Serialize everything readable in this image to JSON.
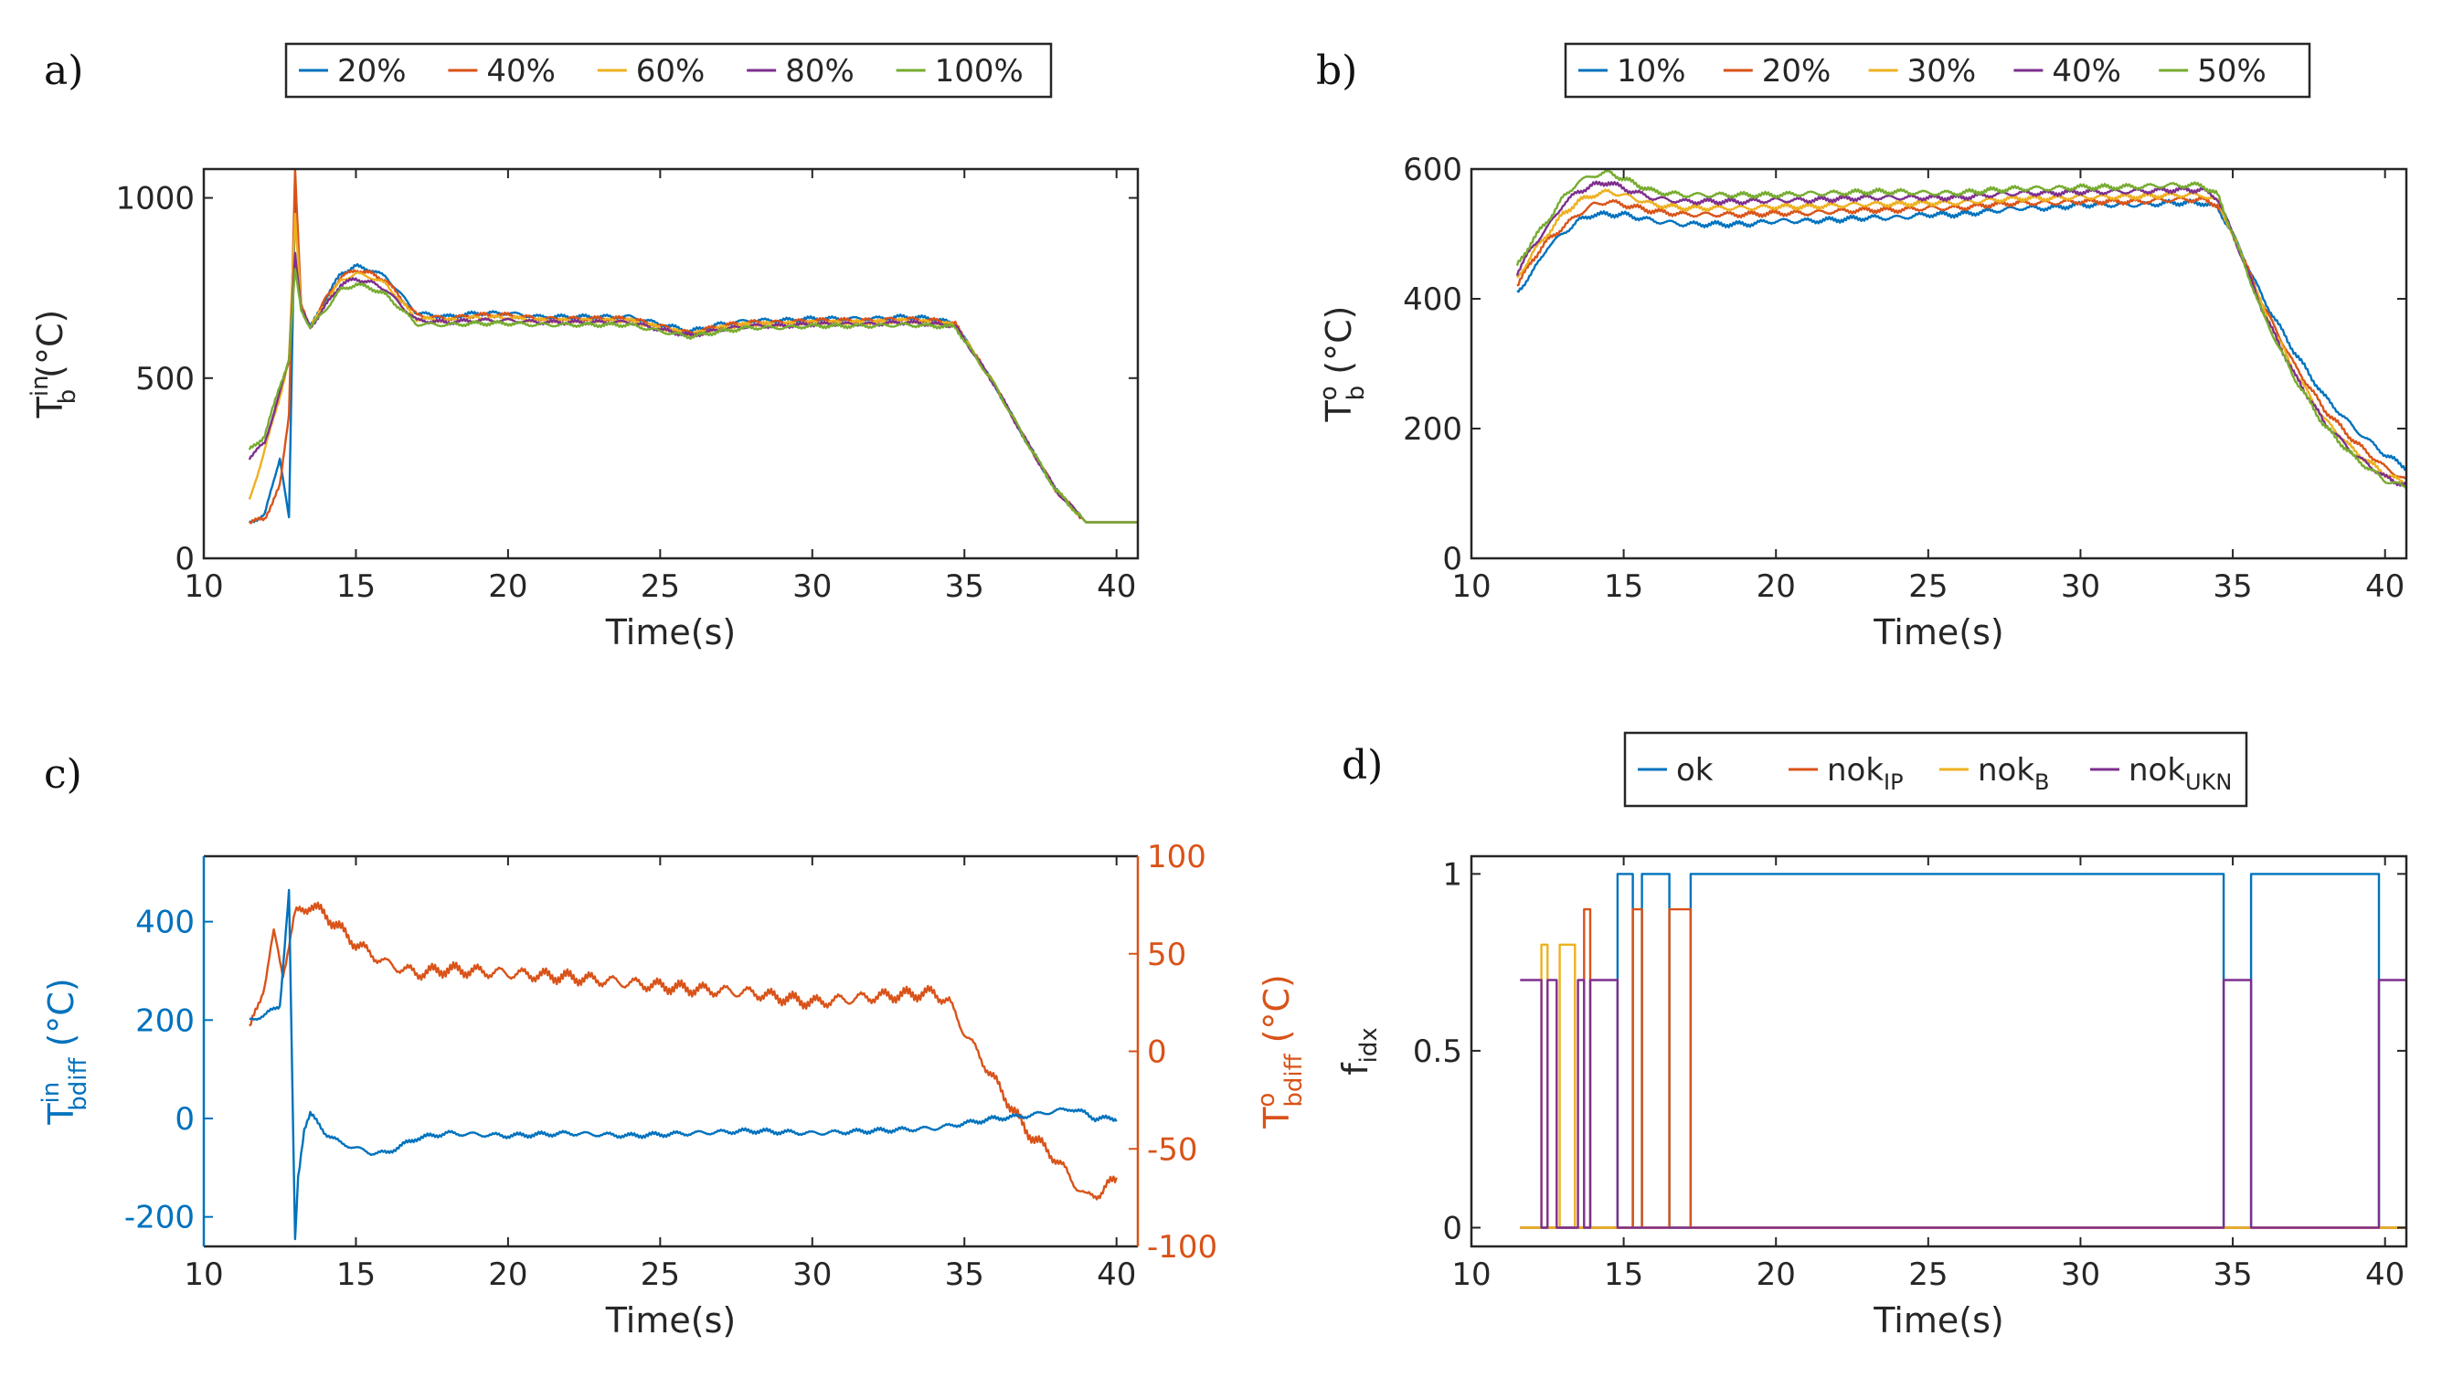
{
  "colors": {
    "blue": "#0072BD",
    "orange": "#D95319",
    "yellow": "#EDB120",
    "purple": "#7E2F8E",
    "green": "#77AC30",
    "axis": "#262626"
  },
  "chart_data": [
    {
      "id": "a",
      "panel_label": "a)",
      "type": "line",
      "xlabel": "Time(s)",
      "xlim": [
        10,
        40.7
      ],
      "ylim": [
        0,
        1080
      ],
      "xticks": [
        "10",
        "15",
        "20",
        "25",
        "30",
        "35",
        "40"
      ],
      "yticks": [
        "0",
        "500",
        "1000"
      ],
      "ylabel": {
        "base": "T",
        "sup": "in",
        "sub": "b",
        "unit": " (°C)"
      },
      "legend": [
        {
          "label": "20%"
        },
        {
          "label": "40%"
        },
        {
          "label": "60%"
        },
        {
          "label": "80%"
        },
        {
          "label": "100%"
        }
      ],
      "x": [
        11.5,
        12,
        12.5,
        12.8,
        13,
        13.2,
        13.5,
        14,
        14.5,
        15,
        15.5,
        16,
        16.5,
        17,
        18,
        19,
        20,
        21,
        22,
        23,
        24,
        25,
        26,
        27,
        28,
        29,
        30,
        31,
        32,
        33,
        34,
        34.7,
        36,
        37,
        38,
        39,
        40,
        40.7
      ],
      "series": [
        {
          "name": "20%",
          "color": "#0072BD",
          "values": [
            100,
            120,
            280,
            110,
            1000,
            700,
            640,
            720,
            790,
            810,
            800,
            780,
            730,
            680,
            670,
            680,
            680,
            670,
            670,
            670,
            670,
            650,
            630,
            650,
            660,
            660,
            665,
            665,
            665,
            670,
            665,
            650,
            480,
            330,
            190,
            100,
            100,
            100
          ]
        },
        {
          "name": "40%",
          "color": "#D95319",
          "values": [
            100,
            110,
            200,
            400,
            1080,
            700,
            640,
            720,
            780,
            800,
            790,
            770,
            720,
            675,
            665,
            675,
            675,
            665,
            665,
            665,
            665,
            645,
            625,
            645,
            655,
            655,
            660,
            660,
            660,
            665,
            660,
            650,
            480,
            330,
            190,
            100,
            100,
            100
          ]
        },
        {
          "name": "60%",
          "color": "#EDB120",
          "values": [
            160,
            300,
            450,
            550,
            950,
            700,
            640,
            710,
            770,
            790,
            780,
            760,
            710,
            665,
            660,
            668,
            668,
            660,
            660,
            660,
            660,
            640,
            622,
            640,
            650,
            650,
            655,
            655,
            655,
            660,
            655,
            648,
            480,
            330,
            190,
            100,
            100,
            100
          ]
        },
        {
          "name": "80%",
          "color": "#7E2F8E",
          "values": [
            280,
            320,
            460,
            550,
            850,
            690,
            640,
            700,
            760,
            775,
            765,
            745,
            700,
            660,
            655,
            660,
            660,
            655,
            655,
            655,
            655,
            635,
            618,
            635,
            645,
            645,
            650,
            650,
            650,
            655,
            650,
            645,
            480,
            330,
            190,
            100,
            100,
            100
          ]
        },
        {
          "name": "100%",
          "color": "#77AC30",
          "values": [
            300,
            340,
            480,
            550,
            800,
            690,
            640,
            690,
            745,
            760,
            750,
            730,
            690,
            650,
            648,
            652,
            652,
            648,
            648,
            648,
            648,
            630,
            615,
            630,
            640,
            640,
            645,
            645,
            645,
            648,
            645,
            642,
            480,
            330,
            190,
            100,
            100,
            100
          ]
        }
      ]
    },
    {
      "id": "b",
      "panel_label": "b)",
      "type": "line",
      "xlabel": "Time(s)",
      "xlim": [
        10,
        40.7
      ],
      "ylim": [
        0,
        600
      ],
      "xticks": [
        "10",
        "15",
        "20",
        "25",
        "30",
        "35",
        "40"
      ],
      "yticks": [
        "0",
        "200",
        "400",
        "600"
      ],
      "ylabel": {
        "base": "T",
        "sup": "o",
        "sub": "b",
        "unit": " (°C)"
      },
      "legend": [
        {
          "label": "10%"
        },
        {
          "label": "20%"
        },
        {
          "label": "30%"
        },
        {
          "label": "40%"
        },
        {
          "label": "50%"
        }
      ],
      "x": [
        11.5,
        12,
        12.5,
        13,
        13.5,
        14,
        14.5,
        15,
        16,
        17,
        18,
        19,
        20,
        21,
        22,
        23,
        24,
        25,
        26,
        27,
        28,
        29,
        30,
        31,
        32,
        33,
        34,
        34.5,
        35,
        36,
        37,
        38,
        39,
        40,
        40.7
      ],
      "series": [
        {
          "name": "10%",
          "color": "#0072BD",
          "values": [
            410,
            440,
            480,
            500,
            520,
            530,
            530,
            530,
            520,
            515,
            515,
            515,
            520,
            520,
            522,
            525,
            525,
            530,
            530,
            535,
            540,
            540,
            545,
            545,
            545,
            548,
            548,
            540,
            500,
            400,
            320,
            250,
            200,
            160,
            140
          ]
        },
        {
          "name": "20%",
          "color": "#D95319",
          "values": [
            420,
            460,
            490,
            510,
            530,
            545,
            550,
            545,
            535,
            530,
            530,
            530,
            532,
            532,
            535,
            537,
            537,
            540,
            540,
            545,
            548,
            548,
            550,
            550,
            550,
            553,
            553,
            545,
            500,
            390,
            300,
            230,
            180,
            140,
            120
          ]
        },
        {
          "name": "30%",
          "color": "#EDB120",
          "values": [
            430,
            470,
            500,
            530,
            550,
            560,
            565,
            560,
            545,
            540,
            540,
            540,
            542,
            542,
            544,
            546,
            546,
            548,
            548,
            552,
            555,
            555,
            557,
            557,
            558,
            560,
            560,
            550,
            500,
            385,
            290,
            215,
            165,
            130,
            115
          ]
        },
        {
          "name": "40%",
          "color": "#7E2F8E",
          "values": [
            440,
            480,
            510,
            545,
            565,
            575,
            580,
            570,
            555,
            550,
            550,
            550,
            552,
            552,
            554,
            556,
            556,
            556,
            556,
            560,
            563,
            563,
            565,
            565,
            566,
            568,
            568,
            555,
            500,
            380,
            285,
            210,
            160,
            125,
            112
          ]
        },
        {
          "name": "50%",
          "color": "#77AC30",
          "values": [
            450,
            490,
            520,
            555,
            580,
            590,
            595,
            585,
            565,
            560,
            560,
            560,
            560,
            562,
            563,
            565,
            565,
            563,
            563,
            567,
            570,
            570,
            572,
            572,
            573,
            575,
            575,
            560,
            500,
            375,
            280,
            205,
            155,
            120,
            110
          ]
        }
      ]
    },
    {
      "id": "c",
      "panel_label": "c)",
      "type": "line",
      "xlabel": "Time(s)",
      "xlim": [
        10,
        40.7
      ],
      "xticks": [
        "10",
        "15",
        "20",
        "25",
        "30",
        "35",
        "40"
      ],
      "left": {
        "ylim": [
          -260,
          533
        ],
        "yticks": [
          "-200",
          "0",
          "200",
          "400"
        ],
        "ylabel": {
          "base": "T",
          "sup": "in",
          "sub": "bdiff",
          "unit": " (°C)"
        },
        "color": "#0072BD",
        "x": [
          11.5,
          12,
          12.5,
          12.8,
          13,
          13.1,
          13.3,
          13.5,
          14,
          14.5,
          15,
          15.5,
          16,
          17,
          18,
          20,
          22,
          24,
          26,
          28,
          30,
          32,
          34,
          35,
          36,
          37,
          38,
          38.5,
          39,
          39.3,
          40
        ],
        "values": [
          200,
          210,
          230,
          460,
          -250,
          -120,
          -20,
          10,
          -30,
          -50,
          -60,
          -70,
          -70,
          -40,
          -30,
          -35,
          -30,
          -35,
          -30,
          -25,
          -30,
          -25,
          -20,
          -10,
          0,
          5,
          15,
          20,
          10,
          0,
          0
        ]
      },
      "right": {
        "ylim": [
          -100,
          100
        ],
        "yticks": [
          "-100",
          "-50",
          "0",
          "50",
          "100"
        ],
        "ylabel": {
          "base": "T",
          "sup": "o",
          "sub": "bdiff",
          "unit": " (°C)"
        },
        "color": "#D95319",
        "x": [
          11.5,
          12,
          12.3,
          12.6,
          13,
          13.5,
          14,
          15,
          16,
          17,
          18,
          20,
          22,
          24,
          26,
          28,
          30,
          32,
          34,
          34.5,
          35,
          36,
          37,
          38,
          38.5,
          39,
          39.5,
          40
        ],
        "values": [
          10,
          35,
          60,
          40,
          70,
          75,
          70,
          55,
          45,
          40,
          42,
          40,
          38,
          35,
          32,
          30,
          25,
          28,
          30,
          25,
          10,
          -15,
          -40,
          -55,
          -65,
          -75,
          -72,
          -65
        ]
      }
    },
    {
      "id": "d",
      "panel_label": "d)",
      "type": "line",
      "xlabel": "Time(s)",
      "xlim": [
        10,
        40.7
      ],
      "ylim": [
        -0.053,
        1.05
      ],
      "xticks": [
        "10",
        "15",
        "20",
        "25",
        "30",
        "35",
        "40"
      ],
      "yticks": [
        "0",
        "0.5",
        "1"
      ],
      "ylabel": {
        "base": "f",
        "sub": "idx"
      },
      "legend": [
        {
          "base": "ok"
        },
        {
          "base": "nok",
          "sub": "IP"
        },
        {
          "base": "nok",
          "sub": "B"
        },
        {
          "base": "nok",
          "sub": "UKN"
        }
      ],
      "series": [
        {
          "name": "ok",
          "color": "#0072BD",
          "steps": [
            [
              11.6,
              0
            ],
            [
              14.8,
              1
            ],
            [
              15.3,
              0
            ],
            [
              15.6,
              1
            ],
            [
              16.5,
              0
            ],
            [
              17.2,
              1
            ],
            [
              34.7,
              0
            ],
            [
              35.6,
              1
            ],
            [
              39.8,
              0
            ],
            [
              40.7,
              0
            ]
          ]
        },
        {
          "name": "nok_IP",
          "color": "#D95319",
          "steps": [
            [
              11.6,
              0
            ],
            [
              13.7,
              0.9
            ],
            [
              13.9,
              0
            ],
            [
              15.3,
              0.9
            ],
            [
              15.6,
              0
            ],
            [
              16.5,
              0.9
            ],
            [
              17.2,
              0
            ],
            [
              40.7,
              0
            ]
          ]
        },
        {
          "name": "nok_B",
          "color": "#EDB120",
          "steps": [
            [
              11.6,
              0
            ],
            [
              12.3,
              0.8
            ],
            [
              12.5,
              0
            ],
            [
              12.9,
              0.8
            ],
            [
              13.4,
              0
            ],
            [
              40.7,
              0
            ]
          ]
        },
        {
          "name": "nok_UKN",
          "color": "#7E2F8E",
          "steps": [
            [
              11.6,
              0.7
            ],
            [
              12.3,
              0
            ],
            [
              12.5,
              0.7
            ],
            [
              12.8,
              0
            ],
            [
              13.5,
              0.7
            ],
            [
              13.7,
              0
            ],
            [
              13.9,
              0.7
            ],
            [
              14.8,
              0
            ],
            [
              34.7,
              0.7
            ],
            [
              35.6,
              0
            ],
            [
              39.8,
              0.7
            ],
            [
              40.7,
              0.7
            ]
          ]
        }
      ]
    }
  ]
}
